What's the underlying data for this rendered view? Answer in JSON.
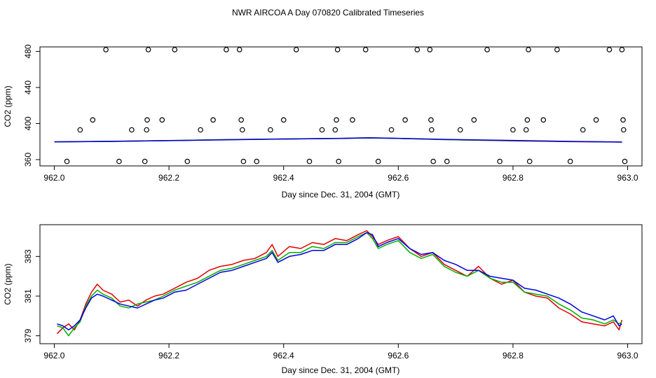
{
  "title": "NWR AIRCOA A  Day 070820  Calibrated Timeseries",
  "colors": {
    "series_red": "#e00000",
    "series_green": "#00b000",
    "series_blue": "#0000e0",
    "frame": "#000000",
    "points": "#000000"
  },
  "chart_data": [
    {
      "type": "scatter",
      "name": "top-panel",
      "xlabel": "Day since Dec. 31, 2004 (GMT)",
      "ylabel": "CO2 (ppm)",
      "xlim": [
        961.975,
        963.025
      ],
      "ylim": [
        353,
        485
      ],
      "x_ticks": [
        "962.0",
        "962.2",
        "962.4",
        "962.6",
        "962.8",
        "963.0"
      ],
      "x_tick_values": [
        962.0,
        962.2,
        962.4,
        962.6,
        962.8,
        963.0
      ],
      "y_ticks": [
        "360",
        "400",
        "440",
        "480"
      ],
      "y_tick_values": [
        360,
        400,
        440,
        480
      ],
      "calibration_points": {
        "x": [
          962.022,
          962.045,
          962.067,
          962.09,
          962.113,
          962.135,
          962.158,
          962.161,
          962.162,
          962.164,
          962.188,
          962.21,
          962.232,
          962.255,
          962.277,
          962.3,
          962.323,
          962.326,
          962.328,
          962.33,
          962.353,
          962.377,
          962.4,
          962.422,
          962.445,
          962.467,
          962.49,
          962.492,
          962.494,
          962.496,
          962.52,
          962.543,
          962.565,
          962.588,
          962.612,
          962.633,
          962.655,
          962.657,
          962.658,
          962.661,
          962.685,
          962.708,
          962.732,
          962.755,
          962.777,
          962.8,
          962.823,
          962.825,
          962.827,
          962.829,
          962.853,
          962.877,
          962.9,
          962.922,
          962.945,
          962.968,
          962.99,
          962.992,
          962.993,
          962.995
        ],
        "y": [
          358,
          393,
          404,
          482,
          358,
          393,
          358,
          393,
          404,
          482,
          404,
          482,
          358,
          393,
          404,
          482,
          482,
          404,
          393,
          358,
          358,
          393,
          404,
          482,
          358,
          393,
          393,
          404,
          482,
          358,
          404,
          482,
          358,
          393,
          404,
          482,
          482,
          404,
          393,
          358,
          358,
          393,
          404,
          482,
          358,
          393,
          393,
          404,
          482,
          358,
          404,
          482,
          358,
          393,
          404,
          482,
          482,
          404,
          393,
          358
        ]
      },
      "series": [
        {
          "name": "red",
          "color": "#e00000",
          "x": [
            962.0,
            962.1,
            962.2,
            962.3,
            962.4,
            962.5,
            962.55,
            962.6,
            962.7,
            962.8,
            962.9,
            962.99
          ],
          "values": [
            379.6,
            380.2,
            381.1,
            382.2,
            382.9,
            383.6,
            384.2,
            383.5,
            381.9,
            380.8,
            379.9,
            379.4
          ]
        },
        {
          "name": "green",
          "color": "#00b000",
          "x": [
            962.0,
            962.1,
            962.2,
            962.3,
            962.4,
            962.5,
            962.55,
            962.6,
            962.7,
            962.8,
            962.9,
            962.99
          ],
          "values": [
            379.7,
            380.3,
            381.0,
            382.1,
            382.8,
            383.5,
            384.0,
            383.4,
            382.0,
            381.0,
            380.1,
            379.5
          ]
        },
        {
          "name": "blue",
          "color": "#0000e0",
          "x": [
            962.0,
            962.1,
            962.2,
            962.3,
            962.4,
            962.5,
            962.55,
            962.6,
            962.7,
            962.8,
            962.9,
            962.99
          ],
          "values": [
            379.7,
            380.2,
            381.0,
            382.0,
            382.8,
            383.5,
            384.1,
            383.6,
            382.2,
            381.3,
            380.2,
            379.5
          ]
        }
      ]
    },
    {
      "type": "line",
      "name": "bottom-panel",
      "xlabel": "Day since Dec. 31, 2004 (GMT)",
      "ylabel": "CO2 (ppm)",
      "xlim": [
        961.975,
        963.025
      ],
      "ylim": [
        378.6,
        384.6
      ],
      "x_ticks": [
        "962.0",
        "962.2",
        "962.4",
        "962.6",
        "962.8",
        "963.0"
      ],
      "x_tick_values": [
        962.0,
        962.2,
        962.4,
        962.6,
        962.8,
        963.0
      ],
      "y_ticks": [
        "379",
        "381",
        "383"
      ],
      "y_tick_values": [
        379,
        381,
        383
      ],
      "series": [
        {
          "name": "red",
          "color": "#e00000",
          "x": [
            962.005,
            962.015,
            962.025,
            962.035,
            962.045,
            962.055,
            962.065,
            962.075,
            962.085,
            962.1,
            962.115,
            962.13,
            962.145,
            962.16,
            962.175,
            962.19,
            962.21,
            962.23,
            962.25,
            962.27,
            962.29,
            962.31,
            962.33,
            962.35,
            962.37,
            962.38,
            962.39,
            962.41,
            962.43,
            962.45,
            962.47,
            962.49,
            962.51,
            962.53,
            962.545,
            962.555,
            962.565,
            962.58,
            962.6,
            962.62,
            962.64,
            962.66,
            962.68,
            962.7,
            962.72,
            962.74,
            962.76,
            962.78,
            962.8,
            962.82,
            962.84,
            962.86,
            962.88,
            962.9,
            962.92,
            962.94,
            962.96,
            962.975,
            962.985,
            962.99
          ],
          "values": [
            379.1,
            379.4,
            379.6,
            379.3,
            379.8,
            380.6,
            381.2,
            381.6,
            381.3,
            381.1,
            380.7,
            380.8,
            380.5,
            380.8,
            381.0,
            381.1,
            381.4,
            381.7,
            381.9,
            382.3,
            382.5,
            382.6,
            382.8,
            382.9,
            383.2,
            383.6,
            383.0,
            383.5,
            383.4,
            383.7,
            383.6,
            383.9,
            383.8,
            384.1,
            384.3,
            384.0,
            383.6,
            383.8,
            384.0,
            383.4,
            383.0,
            383.2,
            382.6,
            382.3,
            382.0,
            382.5,
            381.9,
            381.6,
            381.8,
            381.2,
            381.0,
            380.9,
            380.4,
            380.1,
            379.7,
            379.6,
            379.5,
            379.7,
            379.3,
            379.8
          ]
        },
        {
          "name": "green",
          "color": "#00b000",
          "x": [
            962.005,
            962.015,
            962.025,
            962.035,
            962.045,
            962.055,
            962.065,
            962.075,
            962.085,
            962.1,
            962.115,
            962.13,
            962.145,
            962.16,
            962.175,
            962.19,
            962.21,
            962.23,
            962.25,
            962.27,
            962.29,
            962.31,
            962.33,
            962.35,
            962.37,
            962.38,
            962.39,
            962.41,
            962.43,
            962.45,
            962.47,
            962.49,
            962.51,
            962.53,
            962.545,
            962.555,
            962.565,
            962.58,
            962.6,
            962.62,
            962.64,
            962.66,
            962.68,
            962.7,
            962.72,
            962.74,
            962.76,
            962.78,
            962.8,
            962.82,
            962.84,
            962.86,
            962.88,
            962.9,
            962.92,
            962.94,
            962.96,
            962.975,
            962.985,
            962.99
          ],
          "values": [
            379.5,
            379.4,
            379.0,
            379.4,
            379.7,
            380.5,
            381.0,
            381.3,
            381.1,
            380.9,
            380.5,
            380.4,
            380.6,
            380.7,
            380.8,
            381.0,
            381.3,
            381.5,
            381.7,
            382.0,
            382.3,
            382.4,
            382.6,
            382.8,
            383.0,
            383.3,
            382.8,
            383.2,
            383.2,
            383.5,
            383.4,
            383.7,
            383.7,
            384.0,
            384.2,
            383.9,
            383.4,
            383.6,
            383.8,
            383.2,
            382.9,
            383.1,
            382.5,
            382.2,
            382.0,
            382.3,
            381.9,
            381.7,
            381.7,
            381.2,
            381.1,
            381.0,
            380.6,
            380.3,
            379.9,
            379.8,
            379.6,
            379.8,
            379.6,
            379.7
          ]
        },
        {
          "name": "blue",
          "color": "#0000e0",
          "x": [
            962.005,
            962.015,
            962.025,
            962.035,
            962.045,
            962.055,
            962.065,
            962.075,
            962.085,
            962.1,
            962.115,
            962.13,
            962.145,
            962.16,
            962.175,
            962.19,
            962.21,
            962.23,
            962.25,
            962.27,
            962.29,
            962.31,
            962.33,
            962.35,
            962.37,
            962.38,
            962.39,
            962.41,
            962.43,
            962.45,
            962.47,
            962.49,
            962.51,
            962.53,
            962.545,
            962.555,
            962.565,
            962.58,
            962.6,
            962.62,
            962.64,
            962.66,
            962.68,
            962.7,
            962.72,
            962.74,
            962.76,
            962.78,
            962.8,
            962.82,
            962.84,
            962.86,
            962.88,
            962.9,
            962.92,
            962.94,
            962.96,
            962.975,
            962.985,
            962.99
          ],
          "values": [
            379.6,
            379.5,
            379.3,
            379.5,
            379.8,
            380.4,
            380.9,
            381.1,
            381.0,
            380.8,
            380.6,
            380.5,
            380.4,
            380.6,
            380.8,
            380.9,
            381.2,
            381.3,
            381.6,
            381.9,
            382.2,
            382.3,
            382.5,
            382.7,
            382.9,
            383.2,
            382.7,
            383.0,
            383.1,
            383.3,
            383.3,
            383.6,
            383.6,
            383.9,
            384.2,
            384.1,
            383.5,
            383.7,
            383.9,
            383.4,
            383.1,
            383.2,
            382.8,
            382.6,
            382.3,
            382.3,
            382.0,
            381.9,
            381.8,
            381.4,
            381.3,
            381.1,
            380.9,
            380.6,
            380.2,
            380.0,
            379.8,
            380.0,
            379.5,
            379.6
          ]
        }
      ]
    }
  ]
}
